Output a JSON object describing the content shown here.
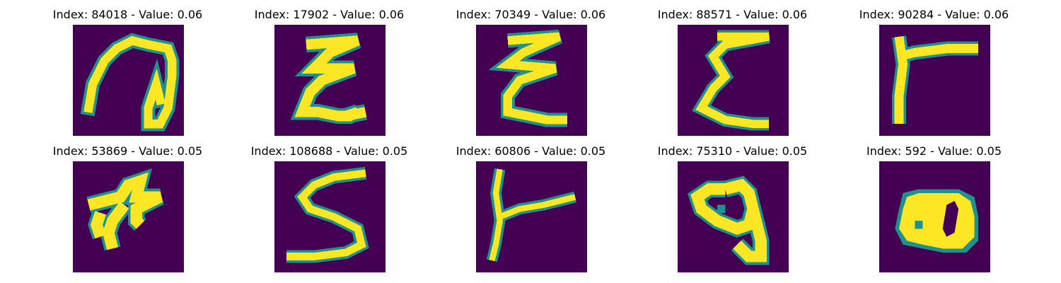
{
  "colors": {
    "background": "#440154",
    "stroke_edge": "#21918c",
    "stroke_core": "#fde725",
    "page": "#ffffff"
  },
  "panels": [
    {
      "title": "Index: 84018 - Value: 0.06",
      "glyph": "glyph-a"
    },
    {
      "title": "Index: 17902 - Value: 0.06",
      "glyph": "glyph-b"
    },
    {
      "title": "Index: 70349 - Value: 0.06",
      "glyph": "glyph-c"
    },
    {
      "title": "Index: 88571 - Value: 0.06",
      "glyph": "glyph-d"
    },
    {
      "title": "Index: 90284 - Value: 0.06",
      "glyph": "glyph-e"
    },
    {
      "title": "Index: 53869 - Value: 0.05",
      "glyph": "glyph-f"
    },
    {
      "title": "Index: 108688 - Value: 0.05",
      "glyph": "glyph-g"
    },
    {
      "title": "Index: 60806 - Value: 0.05",
      "glyph": "glyph-h"
    },
    {
      "title": "Index: 75310 - Value: 0.05",
      "glyph": "glyph-i"
    },
    {
      "title": "Index: 592 - Value: 0.05",
      "glyph": "glyph-j"
    }
  ]
}
